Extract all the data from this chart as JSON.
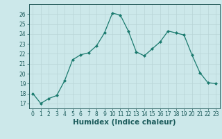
{
  "x": [
    0,
    1,
    2,
    3,
    4,
    5,
    6,
    7,
    8,
    9,
    10,
    11,
    12,
    13,
    14,
    15,
    16,
    17,
    18,
    19,
    20,
    21,
    22,
    23
  ],
  "y": [
    18,
    17,
    17.5,
    17.8,
    19.3,
    21.4,
    21.9,
    22.1,
    22.8,
    24.1,
    26.1,
    25.9,
    24.3,
    22.2,
    21.8,
    22.5,
    23.2,
    24.3,
    24.1,
    23.9,
    21.9,
    20.1,
    19.1,
    19.0
  ],
  "xlabel": "Humidex (Indice chaleur)",
  "ylim": [
    16.5,
    27
  ],
  "xlim": [
    -0.5,
    23.5
  ],
  "yticks": [
    17,
    18,
    19,
    20,
    21,
    22,
    23,
    24,
    25,
    26
  ],
  "xticks": [
    0,
    1,
    2,
    3,
    4,
    5,
    6,
    7,
    8,
    9,
    10,
    11,
    12,
    13,
    14,
    15,
    16,
    17,
    18,
    19,
    20,
    21,
    22,
    23
  ],
  "line_color": "#1a7a6e",
  "marker_color": "#1a7a6e",
  "bg_color": "#cce8ea",
  "grid_color": "#b8d4d6",
  "axis_color": "#2a6060",
  "label_color": "#1a5a5a",
  "tick_label_fontsize": 5.5,
  "xlabel_fontsize": 7.5
}
